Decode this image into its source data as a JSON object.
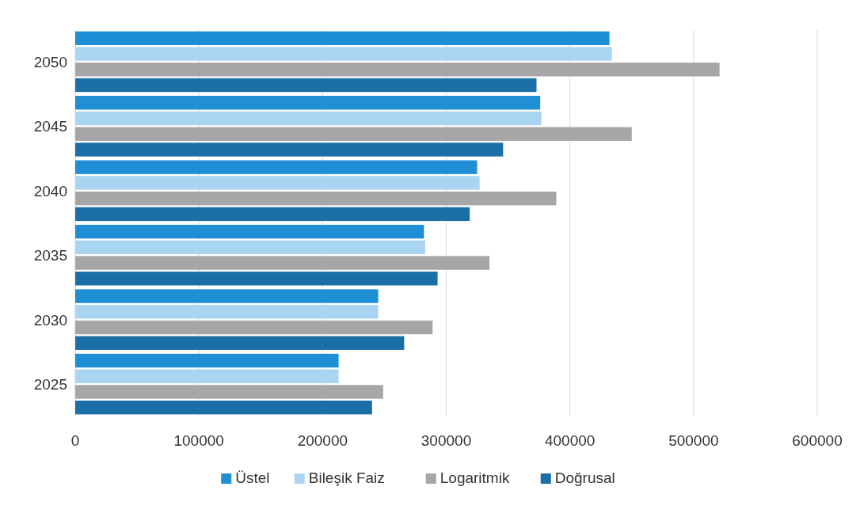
{
  "chart_data": {
    "type": "bar",
    "orientation": "horizontal",
    "categories": [
      "2050",
      "2045",
      "2040",
      "2035",
      "2030",
      "2025"
    ],
    "series": [
      {
        "name": "Üstel",
        "color": "#1e8fd5",
        "values": [
          432000,
          376000,
          325000,
          282000,
          245000,
          213000
        ]
      },
      {
        "name": "Bileşik Faiz",
        "color": "#a9d5f3",
        "values": [
          434000,
          377000,
          327000,
          283000,
          245000,
          213000
        ]
      },
      {
        "name": "Logaritmik",
        "color": "#a6a6a6",
        "values": [
          521000,
          450000,
          389000,
          335000,
          289000,
          249000
        ]
      },
      {
        "name": "Doğrusal",
        "color": "#1a6fa6",
        "values": [
          373000,
          346000,
          319000,
          293000,
          266000,
          240000
        ]
      }
    ],
    "xlim": [
      0,
      600000
    ],
    "xticks": [
      0,
      100000,
      200000,
      300000,
      400000,
      500000,
      600000
    ],
    "grid": "x",
    "legend": "bottom"
  }
}
